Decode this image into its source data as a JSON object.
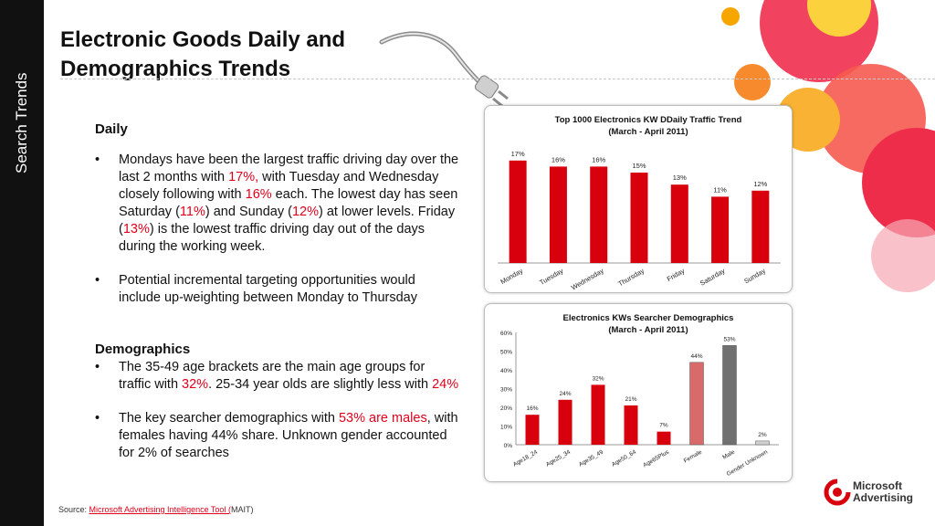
{
  "sidebar": {
    "label": "Search Trends"
  },
  "title": "Electronic Goods Daily and Demographics Trends",
  "daily": {
    "heading": "Daily",
    "bullet1": [
      {
        "t": "Mondays have been the largest traffic driving day over the last 2 months with "
      },
      {
        "t": "17%,",
        "red": true
      },
      {
        "t": " with Tuesday and Wednesday closely following with "
      },
      {
        "t": "16%",
        "red": true
      },
      {
        "t": " each. The lowest day has seen Saturday ("
      },
      {
        "t": "11%",
        "red": true
      },
      {
        "t": ") and Sunday ("
      },
      {
        "t": "12%",
        "red": true
      },
      {
        "t": ") at lower levels. Friday ("
      },
      {
        "t": "13%",
        "red": true
      },
      {
        "t": ") is the lowest traffic driving day out of the days during the working week."
      }
    ],
    "bullet2": "Potential incremental targeting opportunities would include up-weighting between Monday to Thursday"
  },
  "demographics": {
    "heading": "Demographics",
    "bullet1": [
      {
        "t": "The 35-49 age brackets are the main age groups for traffic with "
      },
      {
        "t": "32%",
        "red": true
      },
      {
        "t": ". 25-34 year olds are slightly less with "
      },
      {
        "t": "24%",
        "red": true
      }
    ],
    "bullet2": [
      {
        "t": "The key searcher demographics with "
      },
      {
        "t": "53% are males",
        "red": true
      },
      {
        "t": ", with females having 44% share. Unknown gender accounted for 2% of searches"
      }
    ]
  },
  "source": {
    "prefix": "Source: ",
    "link": "Microsoft Advertising Intelligence Tool (",
    "suffix": "MAIT)"
  },
  "logo": {
    "line1": "Microsoft",
    "line2": "Advertising"
  },
  "colors": {
    "accent_red": "#e0001b",
    "bar_red": "#d9000d",
    "female": "#d96a6a",
    "male": "#707070",
    "unknown": "#d0d0d0"
  },
  "chart_data": [
    {
      "type": "bar",
      "title": "Top 1000 Electronics KW DDaily Traffic Trend",
      "subtitle": "(March - April 2011)",
      "categories": [
        "Monday",
        "Tuesday",
        "Wednesday",
        "Thursday",
        "Friday",
        "Saturday",
        "Sunday"
      ],
      "values": [
        17,
        16,
        16,
        15,
        13,
        11,
        12
      ],
      "labels": [
        "17%",
        "16%",
        "16%",
        "15%",
        "13%",
        "11%",
        "12%"
      ],
      "ylim": [
        0,
        20
      ]
    },
    {
      "type": "bar",
      "title": "Electronics KWs Searcher Demographics",
      "subtitle": "(March - April 2011)",
      "categories": [
        "Age18_24",
        "Age25_34",
        "Age35_49",
        "Age50_64",
        "Age65Plus",
        "Female",
        "Male",
        "Gender Unknown"
      ],
      "values": [
        16,
        24,
        32,
        21,
        7,
        44,
        53,
        2
      ],
      "labels": [
        "16%",
        "24%",
        "32%",
        "21%",
        "7%",
        "44%",
        "53%",
        "2%"
      ],
      "yticks": [
        "0%",
        "10%",
        "20%",
        "30%",
        "40%",
        "50%",
        "60%"
      ],
      "ylim": [
        0,
        60
      ]
    }
  ]
}
